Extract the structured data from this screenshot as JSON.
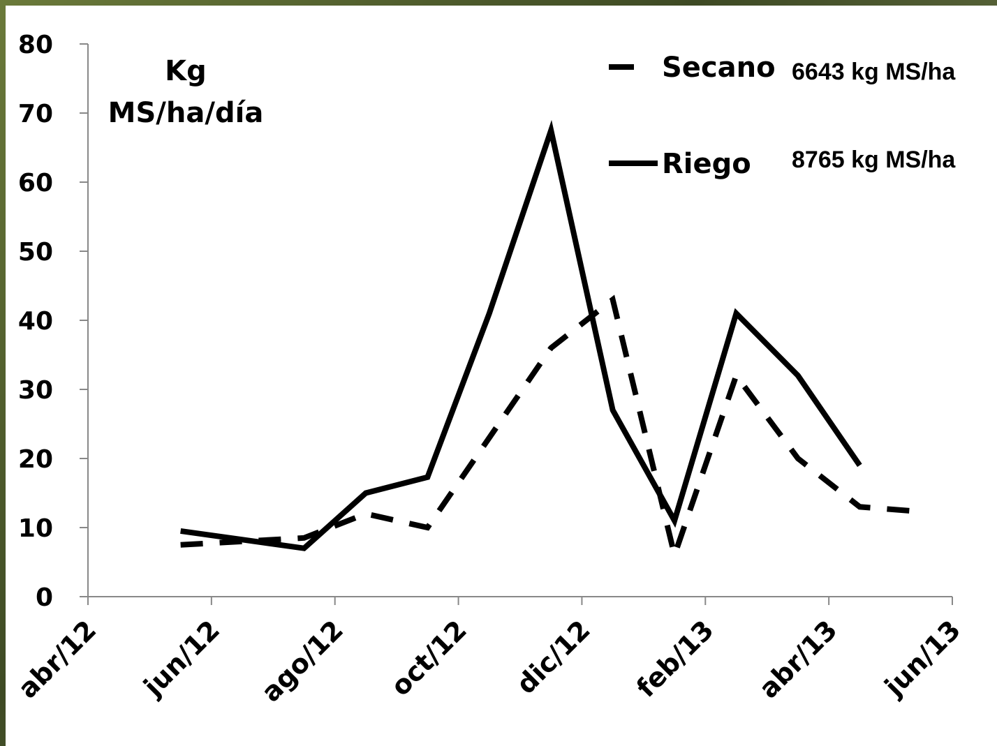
{
  "chart_data": {
    "type": "line",
    "y_label_lines": [
      "Kg",
      "MS/ha/día"
    ],
    "x": [
      "2012-05",
      "2012-07",
      "2012-08",
      "2012-09",
      "2012-10",
      "2012-11",
      "2012-12",
      "2013-01",
      "2013-02",
      "2013-03",
      "2013-04",
      "2013-05"
    ],
    "series": [
      {
        "name": "Secano",
        "color": "#000000",
        "style": "dashed",
        "total": "6643 kg MS/ha",
        "values": [
          7.5,
          8.5,
          12,
          10,
          23,
          36,
          43,
          6,
          32,
          20,
          13,
          12.3
        ]
      },
      {
        "name": "Riego",
        "color": "#000000",
        "style": "solid",
        "total": "8765 kg MS/ha",
        "values": [
          9.5,
          7,
          15,
          17.3,
          41,
          67.5,
          27,
          11,
          41,
          32,
          19,
          null
        ]
      }
    ],
    "xlim": [
      "2012-04",
      "2013-06"
    ],
    "xticks": [
      {
        "value": "2012-04",
        "label": "abr/12"
      },
      {
        "value": "2012-06",
        "label": "jun/12"
      },
      {
        "value": "2012-08",
        "label": "ago/12"
      },
      {
        "value": "2012-10",
        "label": "oct/12"
      },
      {
        "value": "2012-12",
        "label": "dic/12"
      },
      {
        "value": "2013-02",
        "label": "feb/13"
      },
      {
        "value": "2013-04",
        "label": "abr/13"
      },
      {
        "value": "2013-06",
        "label": "jun/13"
      }
    ],
    "ylim": [
      0,
      80
    ],
    "yticks": [
      0,
      10,
      20,
      30,
      40,
      50,
      60,
      70,
      80
    ],
    "grid": false
  }
}
